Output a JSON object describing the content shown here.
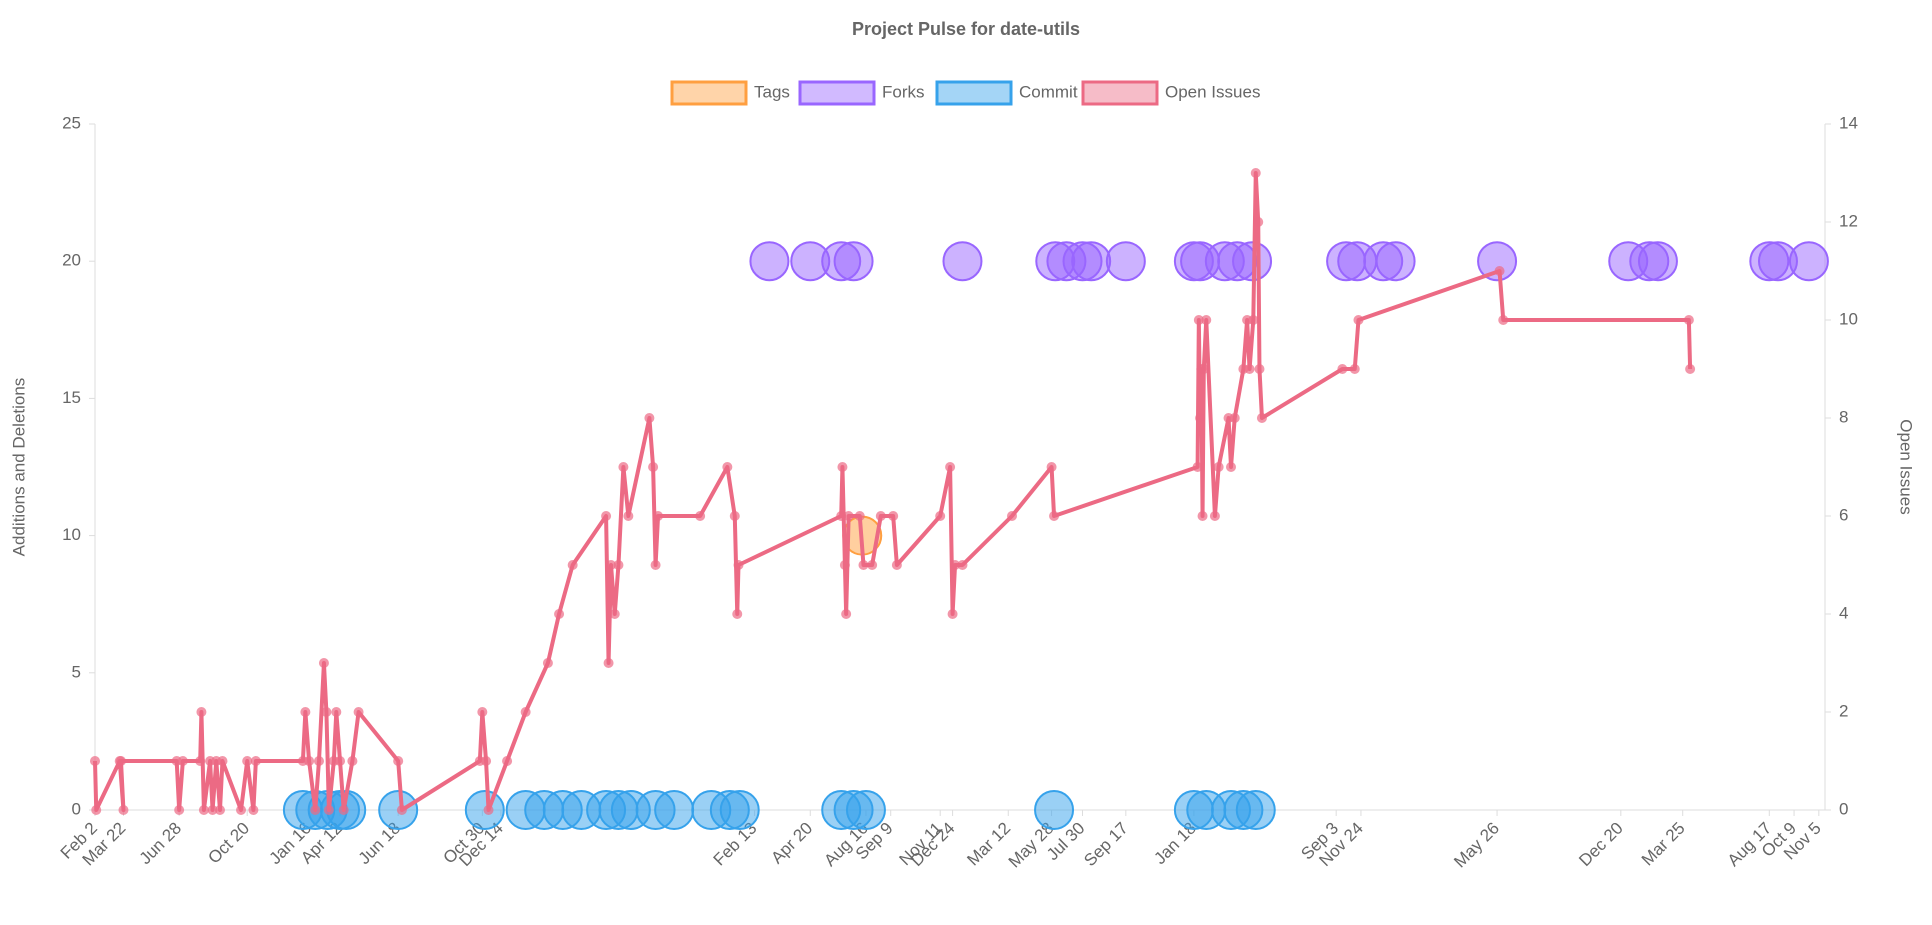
{
  "chart_data": {
    "type": "mixed",
    "title": "Project Pulse for date-utils",
    "y_label": "Additions and Deletions",
    "y2_label": "Open Issues",
    "xlim": [
      0,
      1398
    ],
    "xticks": [
      {
        "value": 0,
        "label": "Feb 2"
      },
      {
        "value": 23,
        "label": "Mar 22"
      },
      {
        "value": 68,
        "label": "Jun 28"
      },
      {
        "value": 123,
        "label": "Oct 20"
      },
      {
        "value": 173,
        "label": "Jan 16"
      },
      {
        "value": 198,
        "label": "Apr 12"
      },
      {
        "value": 245,
        "label": "Jun 18"
      },
      {
        "value": 313,
        "label": "Oct 30"
      },
      {
        "value": 328,
        "label": "Dec 14"
      },
      {
        "value": 533,
        "label": "Feb 13"
      },
      {
        "value": 578,
        "label": "Apr 20"
      },
      {
        "value": 623,
        "label": "Aug 16"
      },
      {
        "value": 643,
        "label": "Sep 9"
      },
      {
        "value": 683,
        "label": "Nov 11"
      },
      {
        "value": 693,
        "label": "Dec 24"
      },
      {
        "value": 738,
        "label": "Mar 12"
      },
      {
        "value": 773,
        "label": "May 28"
      },
      {
        "value": 798,
        "label": "Jul 30"
      },
      {
        "value": 833,
        "label": "Sep 17"
      },
      {
        "value": 888,
        "label": "Jan 18"
      },
      {
        "value": 1003,
        "label": "Sep 3"
      },
      {
        "value": 1023,
        "label": "Nov 24"
      },
      {
        "value": 1133,
        "label": "May 26"
      },
      {
        "value": 1233,
        "label": "Dec 20"
      },
      {
        "value": 1283,
        "label": "Mar 25"
      },
      {
        "value": 1353,
        "label": "Aug 17"
      },
      {
        "value": 1373,
        "label": "Oct 9"
      },
      {
        "value": 1393,
        "label": "Nov 5"
      }
    ],
    "ylim": [
      0,
      25
    ],
    "yticks": [
      0,
      5,
      10,
      15,
      20,
      25
    ],
    "y2lim": [
      0,
      14
    ],
    "y2ticks": [
      0,
      2,
      4,
      6,
      8,
      10,
      12,
      14
    ],
    "grid": false,
    "legend": "top",
    "series": [
      {
        "name": "Tags",
        "type": "bubble",
        "color": "#ff9f40",
        "x": [
          620
        ],
        "values": [
          10
        ]
      },
      {
        "name": "Forks",
        "type": "bubble",
        "color": "#9966ff",
        "x": [
          545,
          578,
          603,
          613,
          701,
          776,
          785,
          798,
          805,
          833,
          888,
          893,
          913,
          923,
          935,
          1011,
          1020,
          1041,
          1051,
          1133,
          1239,
          1256,
          1263,
          1353,
          1360,
          1385
        ],
        "values": [
          20,
          20,
          20,
          20,
          20,
          20,
          20,
          20,
          20,
          20,
          20,
          20,
          20,
          20,
          20,
          20,
          20,
          20,
          20,
          20,
          20,
          20,
          20,
          20,
          20,
          20
        ]
      },
      {
        "name": "Commit",
        "type": "bubble",
        "color": "#36a2eb",
        "x": [
          168,
          178,
          188,
          198,
          203,
          245,
          315,
          348,
          363,
          378,
          393,
          413,
          423,
          433,
          453,
          468,
          498,
          513,
          521,
          603,
          613,
          623,
          775,
          888,
          898,
          918,
          928,
          938
        ],
        "values": [
          0,
          0,
          0,
          0,
          0,
          0,
          0,
          0,
          0,
          0,
          0,
          0,
          0,
          0,
          0,
          0,
          0,
          0,
          0,
          0,
          0,
          0,
          0,
          0,
          0,
          0,
          0,
          0
        ]
      },
      {
        "name": "Open Issues",
        "type": "line",
        "axis": "y2",
        "color": "#ec6a84",
        "x": [
          0,
          1,
          20,
          23,
          21,
          66,
          68,
          71,
          85,
          86,
          88,
          93,
          95,
          98,
          101,
          103,
          118,
          123,
          128,
          130,
          168,
          170,
          173,
          178,
          181,
          185,
          187,
          189,
          193,
          195,
          198,
          201,
          208,
          213,
          245,
          248,
          311,
          313,
          316,
          318,
          333,
          348,
          366,
          375,
          386,
          413,
          415,
          417,
          420,
          423,
          427,
          431,
          448,
          451,
          453,
          455,
          489,
          511,
          517,
          519,
          520,
          603,
          604,
          606,
          607,
          609,
          618,
          621,
          628,
          635,
          645,
          648,
          683,
          691,
          693,
          695,
          701,
          741,
          773,
          775,
          891,
          892,
          893,
          894,
          895,
          896,
          898,
          905,
          908,
          916,
          918,
          921,
          928,
          931,
          933,
          936,
          938,
          940,
          941,
          943,
          1008,
          1018,
          1021,
          1135,
          1138,
          1288,
          1289
        ],
        "values": [
          1,
          0,
          1,
          0,
          1,
          1,
          0,
          1,
          1,
          2,
          0,
          1,
          0,
          1,
          0,
          1,
          0,
          1,
          0,
          1,
          1,
          2,
          1,
          0,
          1,
          3,
          2,
          0,
          1,
          2,
          1,
          0,
          1,
          2,
          1,
          0,
          1,
          2,
          1,
          0,
          1,
          2,
          3,
          4,
          5,
          6,
          3,
          5,
          4,
          5,
          7,
          6,
          8,
          7,
          5,
          6,
          6,
          7,
          6,
          4,
          5,
          6,
          7,
          5,
          4,
          6,
          6,
          5,
          5,
          6,
          6,
          5,
          6,
          7,
          4,
          5,
          5,
          6,
          7,
          6,
          7,
          10,
          8,
          9,
          6,
          9,
          10,
          6,
          7,
          8,
          7,
          8,
          9,
          10,
          9,
          10,
          13,
          12,
          9,
          8,
          9,
          9,
          10,
          11,
          10,
          10,
          9
        ]
      }
    ]
  }
}
